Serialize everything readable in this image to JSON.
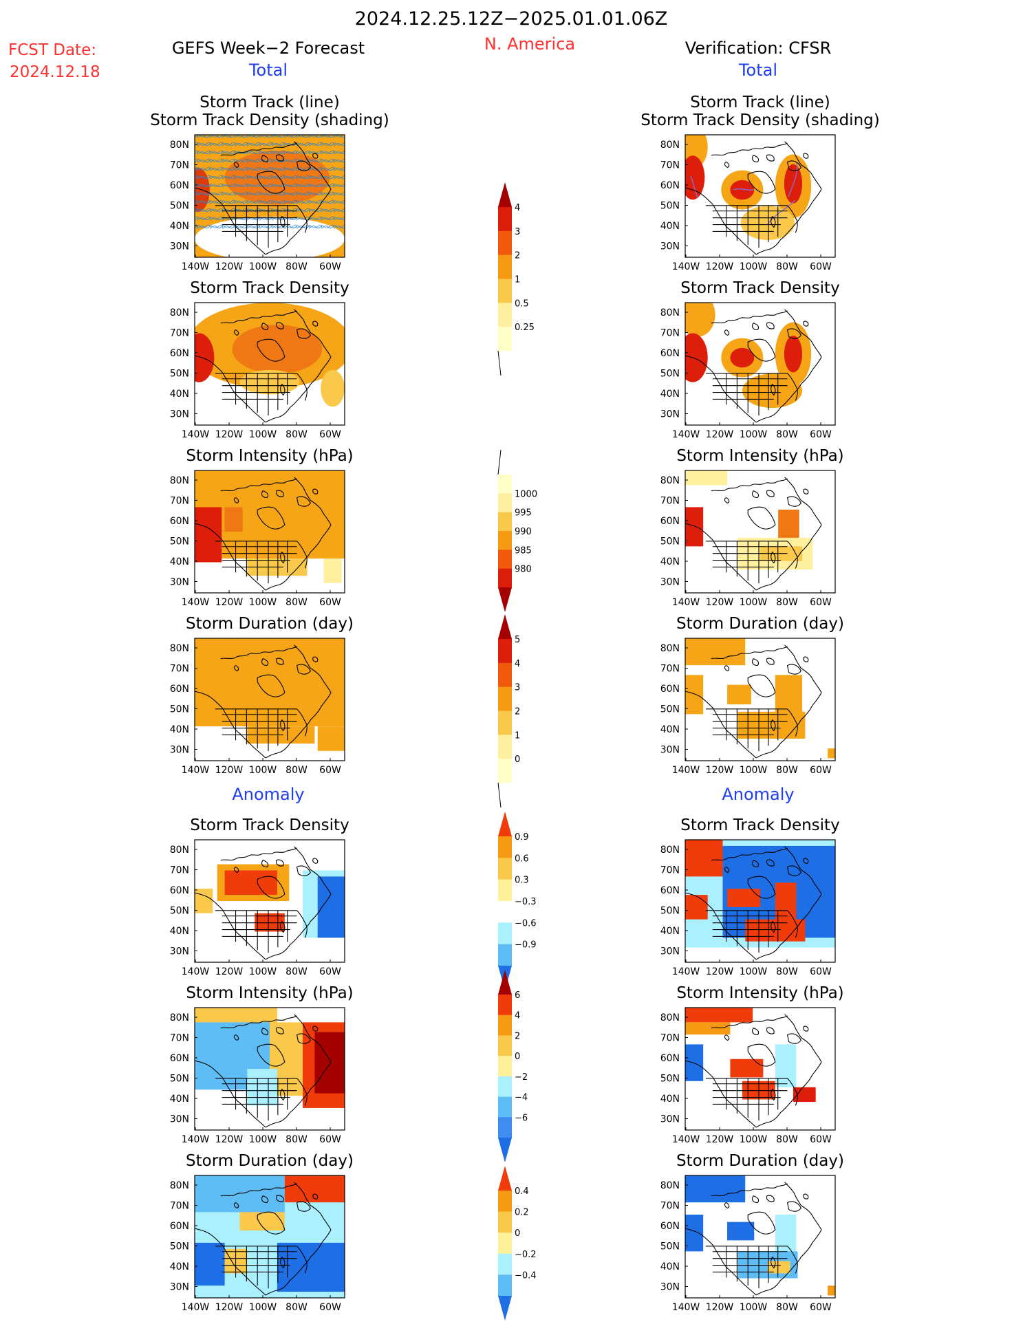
{
  "header": {
    "period": "2024.12.25.12Z−2025.01.01.06Z",
    "fcst_label": "FCST Date:",
    "fcst_date": "2024.12.18",
    "region": "N. America",
    "left_title": "GEFS Week−2 Forecast",
    "right_title": "Verification: CFSR",
    "total_label": "Total",
    "anomaly_label": "Anomaly"
  },
  "panels": [
    {
      "id": "track-line",
      "title1": "Storm Track (line)",
      "title2": "Storm Track Density (shading)"
    },
    {
      "id": "track-density",
      "title1": "Storm Track Density"
    },
    {
      "id": "intensity",
      "title1": "Storm Intensity (hPa)"
    },
    {
      "id": "duration",
      "title1": "Storm Duration (day)"
    },
    {
      "id": "anom-density",
      "title1": "Storm Track Density"
    },
    {
      "id": "anom-intensity",
      "title1": "Storm Intensity (hPa)"
    },
    {
      "id": "anom-duration",
      "title1": "Storm Duration (day)"
    }
  ],
  "axes": {
    "lat_labels": [
      "80N",
      "70N",
      "60N",
      "50N",
      "40N",
      "30N"
    ],
    "lon_labels": [
      "140W",
      "120W",
      "100W",
      "80W",
      "60W"
    ]
  },
  "colorbars": [
    {
      "id": "density",
      "labels": [
        "4",
        "3",
        "2",
        "1",
        "0.5",
        "0.25"
      ],
      "colors": [
        "#a50000",
        "#dc1e0a",
        "#f05a0a",
        "#f59a12",
        "#fac84a",
        "#fff0a0",
        "#ffffc8"
      ],
      "arrow_top": true,
      "arrow_bottom": false
    },
    {
      "id": "intensity",
      "labels": [
        "1000",
        "995",
        "990",
        "985",
        "980"
      ],
      "colors": [
        "#ffffc8",
        "#fff0a0",
        "#fac84a",
        "#f59a12",
        "#f05a0a",
        "#dc1e0a",
        "#a50000"
      ],
      "arrow_top": false,
      "arrow_bottom": true
    },
    {
      "id": "duration",
      "labels": [
        "5",
        "4",
        "3",
        "2",
        "1",
        "0"
      ],
      "colors": [
        "#a50000",
        "#dc1e0a",
        "#f05a0a",
        "#f59a12",
        "#fac84a",
        "#fff0a0",
        "#ffffc8"
      ],
      "arrow_top": true,
      "arrow_bottom": false
    },
    {
      "id": "anom-density",
      "labels": [
        "0.9",
        "0.6",
        "0.3",
        "−0.3",
        "−0.6",
        "−0.9"
      ],
      "colors": [
        "#f03c0a",
        "#f59a12",
        "#fac84a",
        "#fff09a",
        "#ffffff",
        "#aaf0ff",
        "#5fbdf5",
        "#1e6ee6"
      ],
      "arrow_top": true,
      "arrow_bottom": true
    },
    {
      "id": "anom-intensity",
      "labels": [
        "6",
        "4",
        "2",
        "0",
        "−2",
        "−4",
        "−6"
      ],
      "colors": [
        "#a50000",
        "#f03c0a",
        "#f59a12",
        "#fac84a",
        "#fff09a",
        "#aaf0ff",
        "#5fbdf5",
        "#3c8ff0",
        "#1e6ee6"
      ],
      "arrow_top": true,
      "arrow_bottom": true
    },
    {
      "id": "anom-duration",
      "labels": [
        "0.4",
        "0.2",
        "0",
        "−0.2",
        "−0.4"
      ],
      "colors": [
        "#f03c0a",
        "#f59a12",
        "#fac84a",
        "#fff09a",
        "#aaf0ff",
        "#5fbdf5",
        "#1e6ee6"
      ],
      "arrow_top": true,
      "arrow_bottom": true
    }
  ]
}
